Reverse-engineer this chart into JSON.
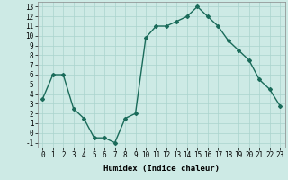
{
  "x": [
    0,
    1,
    2,
    3,
    4,
    5,
    6,
    7,
    8,
    9,
    10,
    11,
    12,
    13,
    14,
    15,
    16,
    17,
    18,
    19,
    20,
    21,
    22,
    23
  ],
  "y": [
    3.5,
    6.0,
    6.0,
    2.5,
    1.5,
    -0.5,
    -0.5,
    -1.0,
    1.5,
    2.0,
    9.8,
    11.0,
    11.0,
    11.5,
    12.0,
    13.0,
    12.0,
    11.0,
    9.5,
    8.5,
    7.5,
    5.5,
    4.5,
    2.8
  ],
  "line_color": "#1a6b5a",
  "marker": "D",
  "marker_size": 2,
  "line_width": 1.0,
  "xlabel": "Humidex (Indice chaleur)",
  "xlim": [
    -0.5,
    23.5
  ],
  "ylim": [
    -1.5,
    13.5
  ],
  "yticks": [
    -1,
    0,
    1,
    2,
    3,
    4,
    5,
    6,
    7,
    8,
    9,
    10,
    11,
    12,
    13
  ],
  "xticks": [
    0,
    1,
    2,
    3,
    4,
    5,
    6,
    7,
    8,
    9,
    10,
    11,
    12,
    13,
    14,
    15,
    16,
    17,
    18,
    19,
    20,
    21,
    22,
    23
  ],
  "background_color": "#cdeae5",
  "grid_color": "#aad4ce",
  "label_fontsize": 6.5,
  "tick_fontsize": 5.5
}
